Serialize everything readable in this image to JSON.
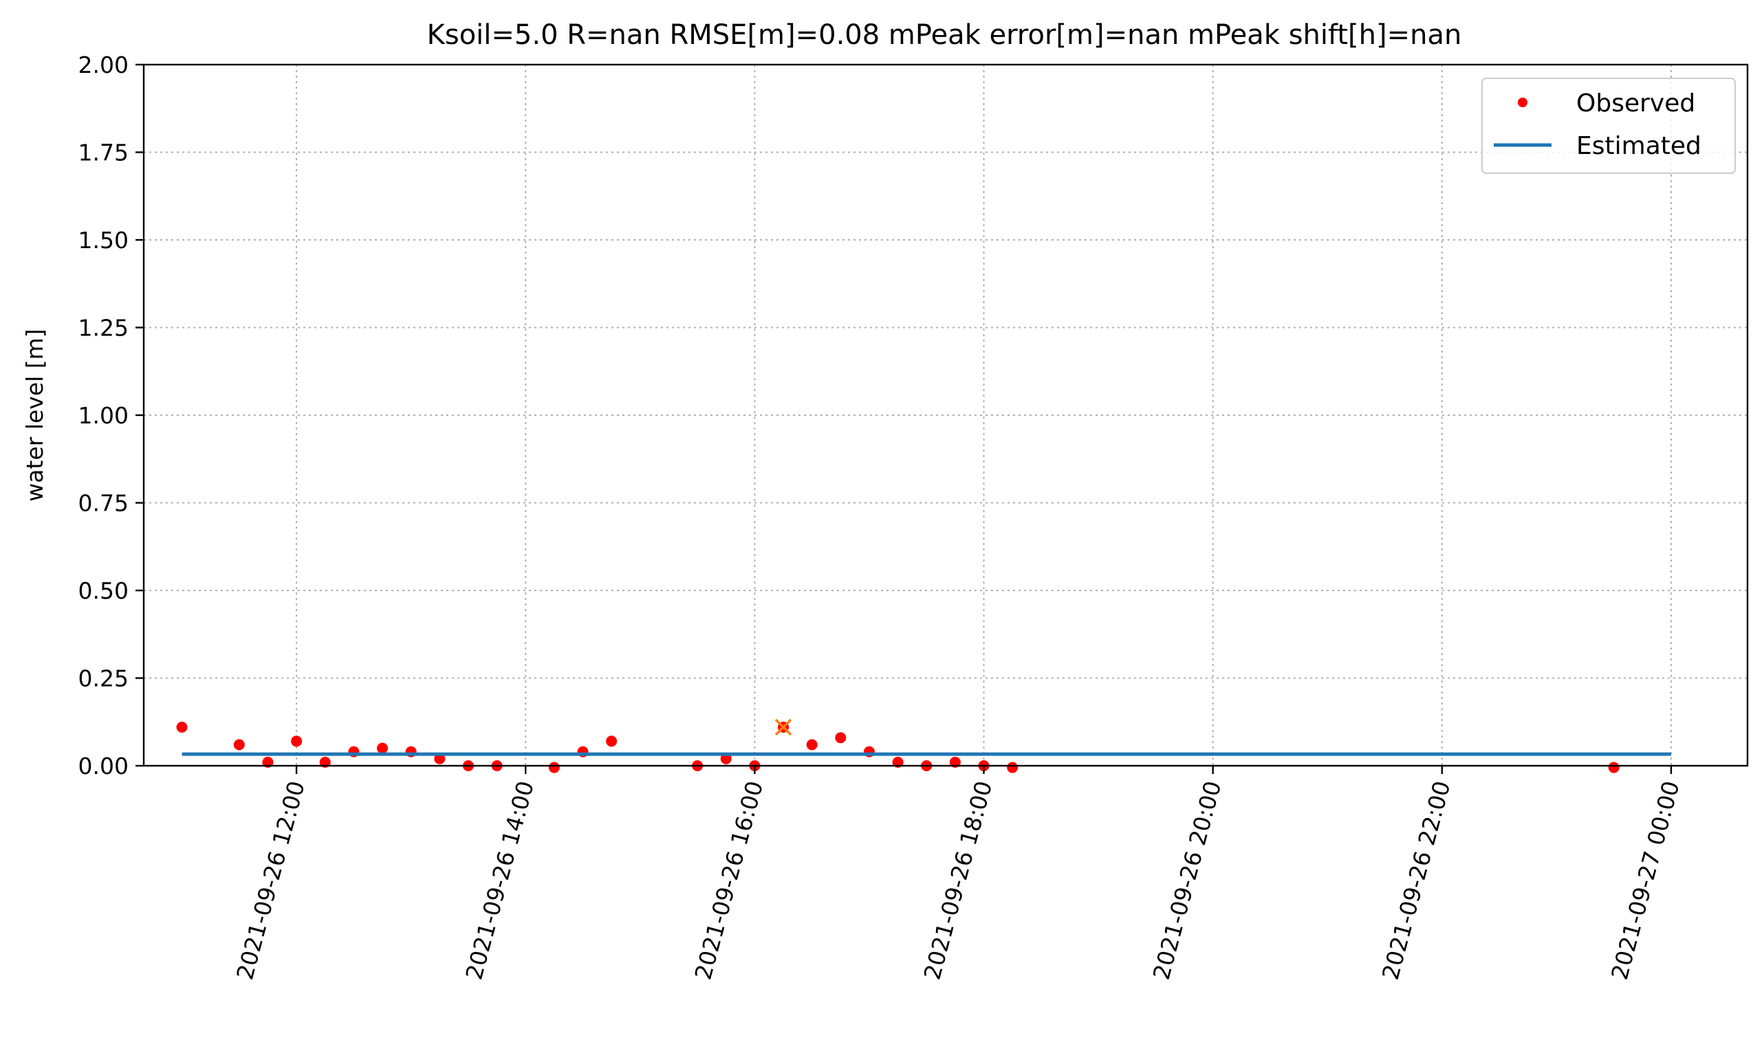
{
  "chart_data": {
    "type": "line",
    "title": "Ksoil=5.0   R=nan   RMSE[m]=0.08   mPeak error[m]=nan  mPeak shift[h]=nan",
    "xlabel": "",
    "ylabel": "water level [m]",
    "xlim": [
      "2021-09-26 10:40",
      "2021-09-27 00:40"
    ],
    "ylim": [
      0,
      2.0
    ],
    "x_ticks": [
      {
        "time": "2021-09-26 12:00",
        "label": "2021-09-26 12:00"
      },
      {
        "time": "2021-09-26 14:00",
        "label": "2021-09-26 14:00"
      },
      {
        "time": "2021-09-26 16:00",
        "label": "2021-09-26 16:00"
      },
      {
        "time": "2021-09-26 18:00",
        "label": "2021-09-26 18:00"
      },
      {
        "time": "2021-09-26 20:00",
        "label": "2021-09-26 20:00"
      },
      {
        "time": "2021-09-26 22:00",
        "label": "2021-09-26 22:00"
      },
      {
        "time": "2021-09-27 00:00",
        "label": "2021-09-27 00:00"
      }
    ],
    "y_ticks": [
      {
        "value": 0.0,
        "label": "0.00"
      },
      {
        "value": 0.25,
        "label": "0.25"
      },
      {
        "value": 0.5,
        "label": "0.50"
      },
      {
        "value": 0.75,
        "label": "0.75"
      },
      {
        "value": 1.0,
        "label": "1.00"
      },
      {
        "value": 1.25,
        "label": "1.25"
      },
      {
        "value": 1.5,
        "label": "1.50"
      },
      {
        "value": 1.75,
        "label": "1.75"
      },
      {
        "value": 2.0,
        "label": "2.00"
      }
    ],
    "grid": true,
    "legend": {
      "placement": "upper-right",
      "entries": [
        "Observed",
        "Estimated"
      ]
    },
    "series": [
      {
        "name": "Observed",
        "style": "markers",
        "color": "#ff0000",
        "points": [
          {
            "x": "2021-09-26 11:00",
            "y": 0.11
          },
          {
            "x": "2021-09-26 11:30",
            "y": 0.06
          },
          {
            "x": "2021-09-26 11:45",
            "y": 0.01
          },
          {
            "x": "2021-09-26 12:00",
            "y": 0.07
          },
          {
            "x": "2021-09-26 12:15",
            "y": 0.01
          },
          {
            "x": "2021-09-26 12:30",
            "y": 0.04
          },
          {
            "x": "2021-09-26 12:45",
            "y": 0.05
          },
          {
            "x": "2021-09-26 13:00",
            "y": 0.04
          },
          {
            "x": "2021-09-26 13:15",
            "y": 0.02
          },
          {
            "x": "2021-09-26 13:30",
            "y": 0.0
          },
          {
            "x": "2021-09-26 13:45",
            "y": 0.0
          },
          {
            "x": "2021-09-26 14:15",
            "y": -0.005
          },
          {
            "x": "2021-09-26 14:30",
            "y": 0.04
          },
          {
            "x": "2021-09-26 14:45",
            "y": 0.07
          },
          {
            "x": "2021-09-26 15:30",
            "y": 0.0
          },
          {
            "x": "2021-09-26 15:45",
            "y": 0.02
          },
          {
            "x": "2021-09-26 16:00",
            "y": 0.0
          },
          {
            "x": "2021-09-26 16:15",
            "y": 0.11
          },
          {
            "x": "2021-09-26 16:30",
            "y": 0.06
          },
          {
            "x": "2021-09-26 16:45",
            "y": 0.08
          },
          {
            "x": "2021-09-26 17:00",
            "y": 0.04
          },
          {
            "x": "2021-09-26 17:15",
            "y": 0.01
          },
          {
            "x": "2021-09-26 17:30",
            "y": 0.0
          },
          {
            "x": "2021-09-26 17:45",
            "y": 0.01
          },
          {
            "x": "2021-09-26 18:00",
            "y": 0.0
          },
          {
            "x": "2021-09-26 18:15",
            "y": -0.005
          },
          {
            "x": "2021-09-26 23:30",
            "y": -0.005
          }
        ]
      },
      {
        "name": "Estimated",
        "style": "line",
        "color": "#1f77b4",
        "points": [
          {
            "x": "2021-09-26 11:00",
            "y": 0.033
          },
          {
            "x": "2021-09-27 00:00",
            "y": 0.033
          }
        ]
      },
      {
        "style": "x-marker",
        "color": "#ff7f0e",
        "points": [
          {
            "x": "2021-09-26 16:15",
            "y": 0.11
          }
        ]
      }
    ]
  }
}
